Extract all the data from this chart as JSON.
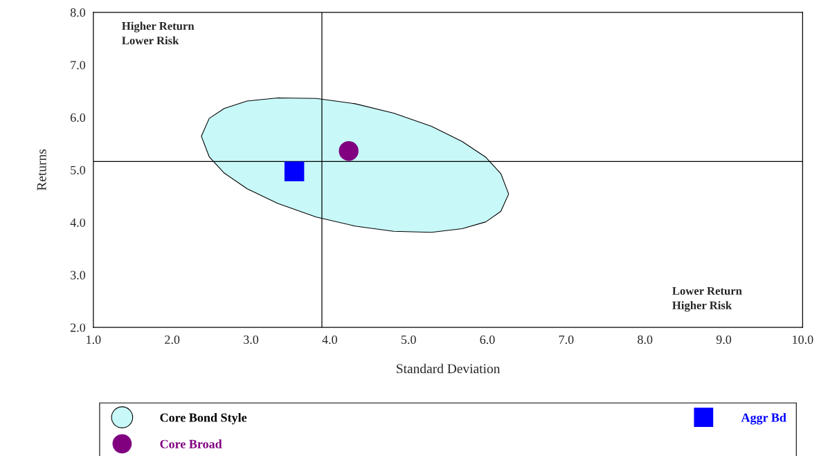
{
  "chart_data": {
    "type": "scatter",
    "xlabel": "Standard Deviation",
    "ylabel": "Returns",
    "xlim": [
      1.0,
      10.0
    ],
    "ylim": [
      2.0,
      8.0
    ],
    "xticks": [
      {
        "value": 1,
        "label": "1.0"
      },
      {
        "value": 2,
        "label": "2.0"
      },
      {
        "value": 3,
        "label": "3.0"
      },
      {
        "value": 4,
        "label": "4.0"
      },
      {
        "value": 5,
        "label": "5.0"
      },
      {
        "value": 6,
        "label": "6.0"
      },
      {
        "value": 7,
        "label": "7.0"
      },
      {
        "value": 8,
        "label": "8.0"
      },
      {
        "value": 9,
        "label": "9.0"
      },
      {
        "value": 10,
        "label": "10.0"
      }
    ],
    "yticks": [
      {
        "value": 2,
        "label": "2.0"
      },
      {
        "value": 3,
        "label": "3.0"
      },
      {
        "value": 4,
        "label": "4.0"
      },
      {
        "value": 5,
        "label": "5.0"
      },
      {
        "value": 6,
        "label": "6.0"
      },
      {
        "value": 7,
        "label": "7.0"
      },
      {
        "value": 8,
        "label": "8.0"
      }
    ],
    "grid": false,
    "legend": "bottom",
    "ref_lines": [
      {
        "axis": "x",
        "value": 3.9,
        "color": "#000000"
      },
      {
        "axis": "y",
        "value": 5.16,
        "color": "#000000"
      }
    ],
    "annotations": [
      "Higher Return\nLower Risk",
      "Lower Return\nHigher Risk"
    ],
    "series": [
      {
        "name": "Core Bond Style",
        "type": "area",
        "color": "#c8f8f8",
        "x": [
          2.37,
          2.47,
          2.66,
          2.95,
          3.34,
          3.83,
          4.32,
          4.81,
          5.29,
          5.68,
          5.98,
          6.17,
          6.27,
          6.17,
          5.98,
          5.68,
          5.29,
          4.81,
          4.32,
          3.83,
          3.34,
          2.95,
          2.66,
          2.47,
          2.37
        ],
        "values": [
          5.64,
          5.98,
          6.17,
          6.31,
          6.37,
          6.36,
          6.26,
          6.08,
          5.83,
          5.54,
          5.24,
          4.93,
          4.54,
          4.21,
          4.01,
          3.88,
          3.81,
          3.83,
          3.93,
          4.1,
          4.36,
          4.64,
          4.94,
          5.25,
          5.64
        ]
      },
      {
        "name": "Aggr Bd",
        "marker": "square",
        "color": "#0000ff",
        "x": [
          3.55
        ],
        "values": [
          4.97
        ]
      },
      {
        "name": "Core Broad",
        "marker": "circle",
        "color": "#800080",
        "x": [
          4.24
        ],
        "values": [
          5.36
        ]
      }
    ]
  }
}
